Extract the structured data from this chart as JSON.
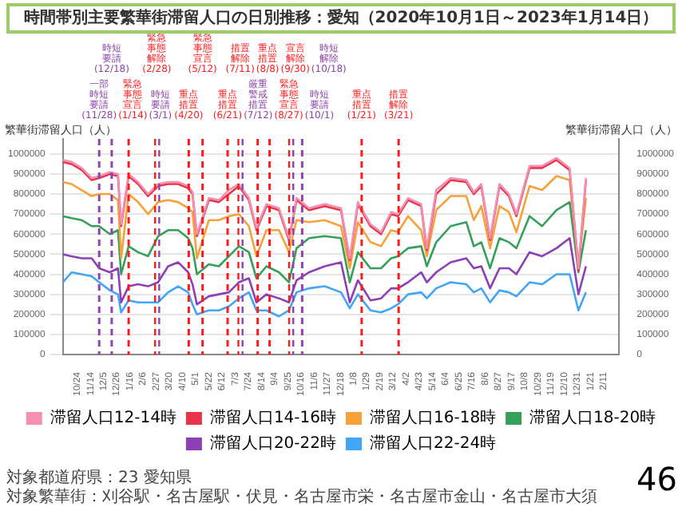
{
  "chart_data": {
    "type": "line",
    "title": "時間帯別主要繁華街滞留人口の日別推移：愛知（2020年10月1日～2023年1月14日）",
    "ylabel": "繁華街滞留人口（人）",
    "y2label": "繁華街滞留人口（人）",
    "x": [
      "2020-10-01",
      "2020-10-15",
      "2020-10-31",
      "2020-11-16",
      "2020-11-28",
      "2020-12-15",
      "2020-12-28",
      "2021-01-02",
      "2021-01-14",
      "2021-01-29",
      "2021-02-14",
      "2021-03-02",
      "2021-03-18",
      "2021-04-03",
      "2021-04-19",
      "2021-04-26",
      "2021-05-03",
      "2021-05-22",
      "2021-06-07",
      "2021-06-23",
      "2021-07-09",
      "2021-07-25",
      "2021-08-06",
      "2021-08-22",
      "2021-09-11",
      "2021-09-27",
      "2021-10-09",
      "2021-10-29",
      "2021-11-23",
      "2021-12-19",
      "2022-01-02",
      "2022-01-15",
      "2022-02-04",
      "2022-02-21",
      "2022-03-09",
      "2022-03-20",
      "2022-04-05",
      "2022-04-26",
      "2022-05-05",
      "2022-05-20",
      "2022-06-12",
      "2022-07-07",
      "2022-07-19",
      "2022-07-31",
      "2022-08-14",
      "2022-08-29",
      "2022-09-13",
      "2022-09-25",
      "2022-10-16",
      "2022-11-05",
      "2022-11-28",
      "2022-12-19",
      "2023-01-02",
      "2023-01-14"
    ],
    "series": [
      {
        "name": "滞留人口12-14時",
        "color": "#f48fb1",
        "values": [
          970000,
          960000,
          930000,
          880000,
          890000,
          910000,
          900000,
          650000,
          900000,
          860000,
          800000,
          850000,
          860000,
          860000,
          840000,
          810000,
          600000,
          780000,
          770000,
          820000,
          850000,
          780000,
          630000,
          750000,
          730000,
          580000,
          780000,
          730000,
          750000,
          730000,
          480000,
          760000,
          650000,
          610000,
          710000,
          700000,
          780000,
          750000,
          530000,
          820000,
          880000,
          870000,
          810000,
          850000,
          580000,
          850000,
          800000,
          700000,
          940000,
          940000,
          980000,
          930000,
          430000,
          880000
        ]
      },
      {
        "name": "滞留人口14-16時",
        "color": "#e8334a",
        "values": [
          960000,
          950000,
          920000,
          870000,
          880000,
          900000,
          890000,
          640000,
          890000,
          850000,
          790000,
          840000,
          850000,
          850000,
          830000,
          800000,
          590000,
          770000,
          760000,
          800000,
          840000,
          770000,
          620000,
          740000,
          720000,
          570000,
          770000,
          720000,
          740000,
          720000,
          470000,
          750000,
          640000,
          600000,
          700000,
          690000,
          770000,
          740000,
          520000,
          800000,
          870000,
          860000,
          800000,
          840000,
          570000,
          840000,
          790000,
          690000,
          930000,
          930000,
          970000,
          920000,
          420000,
          870000
        ]
      },
      {
        "name": "滞留人口16-18時",
        "color": "#f7a13a",
        "values": [
          860000,
          850000,
          820000,
          790000,
          800000,
          800000,
          770000,
          480000,
          800000,
          760000,
          700000,
          760000,
          770000,
          760000,
          730000,
          710000,
          480000,
          670000,
          670000,
          690000,
          700000,
          640000,
          490000,
          620000,
          620000,
          510000,
          670000,
          660000,
          670000,
          640000,
          430000,
          660000,
          560000,
          540000,
          620000,
          610000,
          690000,
          620000,
          490000,
          720000,
          790000,
          790000,
          670000,
          740000,
          530000,
          740000,
          710000,
          610000,
          840000,
          820000,
          890000,
          870000,
          440000,
          780000
        ]
      },
      {
        "name": "滞留人口18-20時",
        "color": "#35a05a",
        "values": [
          690000,
          680000,
          670000,
          640000,
          640000,
          600000,
          620000,
          400000,
          540000,
          510000,
          490000,
          590000,
          620000,
          620000,
          580000,
          530000,
          400000,
          450000,
          440000,
          490000,
          540000,
          510000,
          380000,
          440000,
          410000,
          360000,
          530000,
          580000,
          590000,
          580000,
          360000,
          510000,
          430000,
          430000,
          480000,
          490000,
          530000,
          540000,
          440000,
          560000,
          640000,
          660000,
          540000,
          560000,
          430000,
          580000,
          560000,
          530000,
          690000,
          640000,
          720000,
          760000,
          410000,
          620000
        ]
      },
      {
        "name": "滞留人口20-22時",
        "color": "#8e3fb5",
        "values": [
          500000,
          490000,
          480000,
          480000,
          430000,
          410000,
          430000,
          260000,
          340000,
          350000,
          340000,
          360000,
          440000,
          460000,
          410000,
          350000,
          250000,
          290000,
          300000,
          310000,
          360000,
          380000,
          260000,
          300000,
          280000,
          260000,
          370000,
          410000,
          440000,
          460000,
          260000,
          370000,
          270000,
          280000,
          330000,
          330000,
          360000,
          410000,
          360000,
          410000,
          460000,
          480000,
          430000,
          440000,
          330000,
          430000,
          430000,
          400000,
          510000,
          490000,
          530000,
          580000,
          300000,
          440000
        ]
      },
      {
        "name": "滞留人口22-24時",
        "color": "#42a5f5",
        "values": [
          360000,
          410000,
          400000,
          390000,
          360000,
          320000,
          300000,
          210000,
          270000,
          260000,
          260000,
          260000,
          310000,
          340000,
          310000,
          250000,
          200000,
          220000,
          220000,
          240000,
          280000,
          310000,
          220000,
          220000,
          190000,
          220000,
          310000,
          330000,
          340000,
          310000,
          230000,
          300000,
          220000,
          210000,
          230000,
          250000,
          300000,
          310000,
          280000,
          330000,
          360000,
          350000,
          310000,
          330000,
          260000,
          320000,
          310000,
          290000,
          360000,
          350000,
          400000,
          400000,
          220000,
          310000
        ]
      }
    ],
    "xlim": [
      "2020-10-01",
      "2023-03-08"
    ],
    "xticks": [
      {
        "value": "2020-10-24",
        "label": "10/24"
      },
      {
        "value": "2020-11-14",
        "label": "11/14"
      },
      {
        "value": "2020-12-05",
        "label": "12/5"
      },
      {
        "value": "2020-12-26",
        "label": "12/26"
      },
      {
        "value": "2021-01-16",
        "label": "1/16"
      },
      {
        "value": "2021-02-06",
        "label": "2/6"
      },
      {
        "value": "2021-02-27",
        "label": "2/27"
      },
      {
        "value": "2021-03-20",
        "label": "3/20"
      },
      {
        "value": "2021-04-10",
        "label": "4/10"
      },
      {
        "value": "2021-05-01",
        "label": "5/1"
      },
      {
        "value": "2021-05-22",
        "label": "5/22"
      },
      {
        "value": "2021-06-12",
        "label": "6/12"
      },
      {
        "value": "2021-07-03",
        "label": "7/3"
      },
      {
        "value": "2021-07-24",
        "label": "7/24"
      },
      {
        "value": "2021-08-14",
        "label": "8/14"
      },
      {
        "value": "2021-09-04",
        "label": "9/4"
      },
      {
        "value": "2021-09-25",
        "label": "9/25"
      },
      {
        "value": "2021-10-16",
        "label": "10/16"
      },
      {
        "value": "2021-11-06",
        "label": "11/6"
      },
      {
        "value": "2021-11-27",
        "label": "11/27"
      },
      {
        "value": "2021-12-18",
        "label": "12/18"
      },
      {
        "value": "2022-01-08",
        "label": "1/8"
      },
      {
        "value": "2022-01-29",
        "label": "1/29"
      },
      {
        "value": "2022-02-19",
        "label": "2/19"
      },
      {
        "value": "2022-03-12",
        "label": "3/12"
      },
      {
        "value": "2022-04-02",
        "label": "4/2"
      },
      {
        "value": "2022-04-23",
        "label": "4/23"
      },
      {
        "value": "2022-05-14",
        "label": "5/14"
      },
      {
        "value": "2022-06-04",
        "label": "6/4"
      },
      {
        "value": "2022-06-25",
        "label": "6/25"
      },
      {
        "value": "2022-07-16",
        "label": "7/16"
      },
      {
        "value": "2022-08-06",
        "label": "8/6"
      },
      {
        "value": "2022-08-27",
        "label": "8/27"
      },
      {
        "value": "2022-09-17",
        "label": "9/17"
      },
      {
        "value": "2022-10-08",
        "label": "10/8"
      },
      {
        "value": "2022-10-29",
        "label": "10/29"
      },
      {
        "value": "2022-11-19",
        "label": "11/19"
      },
      {
        "value": "2022-12-10",
        "label": "12/10"
      },
      {
        "value": "2022-12-31",
        "label": "12/31"
      },
      {
        "value": "2023-01-21",
        "label": "1/21"
      },
      {
        "value": "2023-02-11",
        "label": "2/11"
      }
    ],
    "ylim": [
      0,
      1075000
    ],
    "yticks": [
      0,
      100000,
      200000,
      300000,
      400000,
      500000,
      600000,
      700000,
      800000,
      900000,
      1000000
    ],
    "y2lim": [
      0,
      1075000
    ],
    "y2ticks": [
      0,
      100000,
      200000,
      300000,
      400000,
      500000,
      600000,
      700000,
      800000,
      900000,
      1000000
    ],
    "grid": "y",
    "legend": "bottom",
    "ref_lines": [
      {
        "axis": "x",
        "value": "2020-11-28",
        "label": "一部時短要請(11/28)",
        "color": "#8e44ad",
        "line_style": "dashed"
      },
      {
        "axis": "x",
        "value": "2020-12-18",
        "label": "時短要請(12/18)",
        "color": "#8e44ad",
        "line_style": "dashed"
      },
      {
        "axis": "x",
        "value": "2021-01-14",
        "label": "緊急事態宣言(1/14)",
        "color": "#ff1a1a",
        "line_style": "dashed"
      },
      {
        "axis": "x",
        "value": "2021-02-28",
        "label": "緊急事態解除(2/28)",
        "color": "#ff1a1a",
        "line_style": "dashed"
      },
      {
        "axis": "x",
        "value": "2021-03-01",
        "label": "時短要請(3/1)",
        "color": "#8e44ad",
        "line_style": "dashed"
      },
      {
        "axis": "x",
        "value": "2021-04-20",
        "label": "重点措置(4/20)",
        "color": "#ff1a1a",
        "line_style": "dashed"
      },
      {
        "axis": "x",
        "value": "2021-05-12",
        "label": "緊急事態宣言(5/12)",
        "color": "#ff1a1a",
        "line_style": "dashed"
      },
      {
        "axis": "x",
        "value": "2021-06-21",
        "label": "重点措置(6/21)",
        "color": "#ff1a1a",
        "line_style": "dashed"
      },
      {
        "axis": "x",
        "value": "2021-07-11",
        "label": "措置解除(7/11)",
        "color": "#ff1a1a",
        "line_style": "dashed"
      },
      {
        "axis": "x",
        "value": "2021-07-12",
        "label": "厳重警戒措置(7/12)",
        "color": "#8e44ad",
        "line_style": "dashed"
      },
      {
        "axis": "x",
        "value": "2021-08-08",
        "label": "重点措置(8/8)",
        "color": "#ff1a1a",
        "line_style": "dashed"
      },
      {
        "axis": "x",
        "value": "2021-08-27",
        "label": "緊急事態宣言(8/27)",
        "color": "#ff1a1a",
        "line_style": "dashed"
      },
      {
        "axis": "x",
        "value": "2021-09-30",
        "label": "宣言解除(9/30)",
        "color": "#ff1a1a",
        "line_style": "dashed"
      },
      {
        "axis": "x",
        "value": "2021-10-01",
        "label": "時短要請(10/1)",
        "color": "#8e44ad",
        "line_style": "dashed"
      },
      {
        "axis": "x",
        "value": "2021-10-18",
        "label": "時短解除(10/18)",
        "color": "#8e44ad",
        "line_style": "dashed"
      },
      {
        "axis": "x",
        "value": "2022-01-21",
        "label": "重点措置(1/21)",
        "color": "#ff1a1a",
        "line_style": "dashed"
      },
      {
        "axis": "x",
        "value": "2022-03-21",
        "label": "措置解除(3/21)",
        "color": "#ff1a1a",
        "line_style": "dashed"
      }
    ],
    "annotations": [
      "対象都道府県：23 愛知県",
      "対象繁華街：刈谷駅・名古屋駅・伏見・名古屋市栄・名古屋市金山・名古屋市大須",
      "46"
    ]
  }
}
